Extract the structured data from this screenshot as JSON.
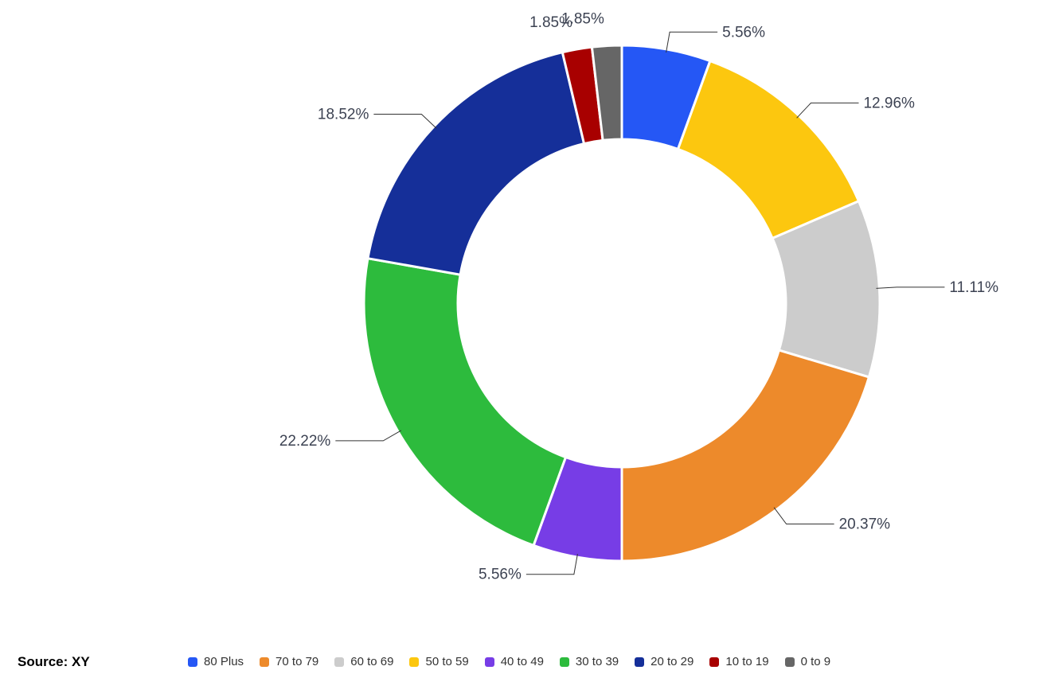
{
  "chart_data": {
    "type": "pie",
    "variant": "donut",
    "title": "",
    "source": "Source: XY",
    "legend_position": "bottom",
    "categories": [
      "80 Plus",
      "70 to 79",
      "60 to 69",
      "50 to 59",
      "40 to 49",
      "30 to 39",
      "20 to 29",
      "10 to 19",
      "0 to 9"
    ],
    "values": [
      5.56,
      20.37,
      11.11,
      12.96,
      5.56,
      22.22,
      18.52,
      1.85,
      1.85
    ],
    "labels": [
      "5.56%",
      "20.37%",
      "11.11%",
      "12.96%",
      "5.56%",
      "22.22%",
      "18.52%",
      "1.85%",
      "1.85%"
    ],
    "colors": [
      "#2557f5",
      "#ed8a2b",
      "#cccccc",
      "#fcc70f",
      "#773de6",
      "#2dbb3d",
      "#152f99",
      "#a80000",
      "#666666"
    ],
    "draw_order_clockwise_from_top": [
      "80 Plus",
      "50 to 59",
      "60 to 69",
      "70 to 79",
      "40 to 49",
      "30 to 39",
      "20 to 29",
      "10 to 19",
      "0 to 9"
    ]
  }
}
